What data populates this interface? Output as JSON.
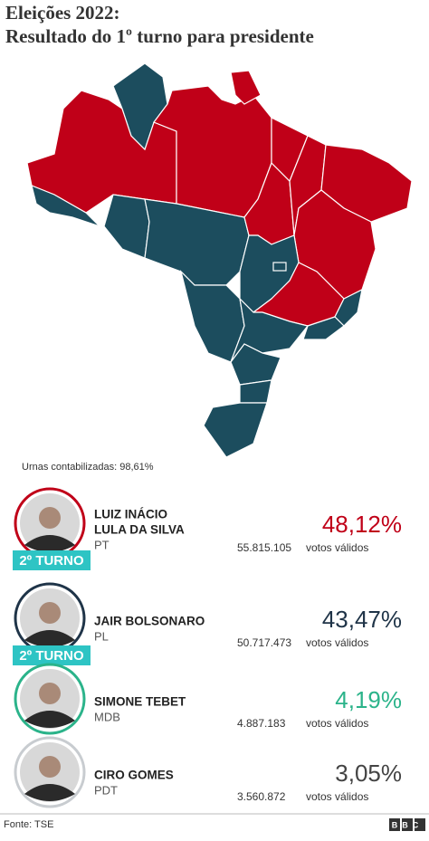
{
  "header": {
    "title": "Eleições 2022:",
    "subtitle": "Resultado do 1º turno para presidente"
  },
  "counted": "Urnas contabilizadas: 98,61%",
  "candidates": [
    {
      "name": [
        "LUIZ INÁCIO",
        "LULA DA SILVA"
      ],
      "party": "PT",
      "percent": "48,12%",
      "votes": "55.815.105",
      "votes_label": "votos válidos",
      "badge": "2º TURNO",
      "color": "#c00018",
      "ring": "#c00018"
    },
    {
      "name": [
        "JAIR BOLSONARO"
      ],
      "party": "PL",
      "percent": "43,47%",
      "votes": "50.717.473",
      "votes_label": "votos válidos",
      "badge": "2º TURNO",
      "color": "#1f3448",
      "ring": "#1f3448"
    },
    {
      "name": [
        "SIMONE TEBET"
      ],
      "party": "MDB",
      "percent": "4,19%",
      "votes": "4.887.183",
      "votes_label": "votos válidos",
      "color": "#2bb38a",
      "ring": "#2bb38a"
    },
    {
      "name": [
        "CIRO GOMES"
      ],
      "party": "PDT",
      "percent": "3,05%",
      "votes": "3.560.872",
      "votes_label": "votos válidos",
      "color": "#444444",
      "ring": "#c8ccd0"
    }
  ],
  "footer": {
    "source": "Fonte: TSE",
    "logo": "BBC"
  }
}
